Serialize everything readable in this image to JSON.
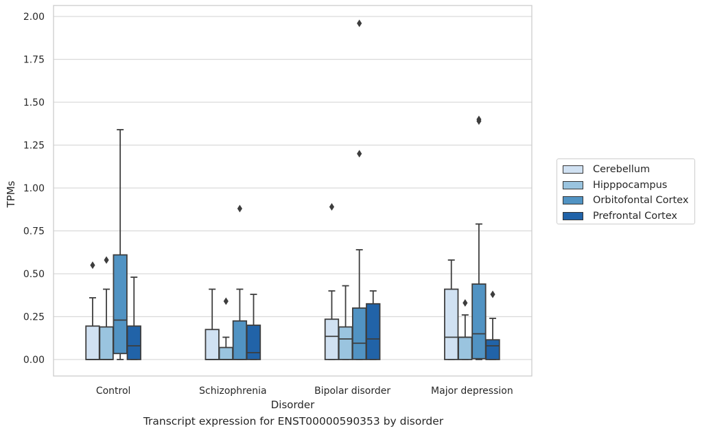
{
  "caption": "Transcript expression for ENST00000590353 by disorder",
  "chart_data": {
    "type": "box",
    "xlabel": "Disorder",
    "ylabel": "TPMs",
    "ylim": [
      -0.095,
      2.06
    ],
    "yticks": [
      "0.00",
      "0.25",
      "0.50",
      "0.75",
      "1.00",
      "1.25",
      "1.50",
      "1.75",
      "2.00"
    ],
    "grid": true,
    "legend_position": "center-right outside",
    "categories": [
      "Control",
      "Schizophrenia",
      "Bipolar disorder",
      "Major depression"
    ],
    "series": [
      {
        "name": "Cerebellum",
        "color": "#d0e1f2",
        "boxes": [
          {
            "whisker_low": 0.0,
            "q1": 0.0,
            "median": 0.0,
            "q3": 0.195,
            "whisker_high": 0.36,
            "outliers": [
              0.55
            ]
          },
          {
            "whisker_low": 0.0,
            "q1": 0.0,
            "median": 0.0,
            "q3": 0.175,
            "whisker_high": 0.41,
            "outliers": []
          },
          {
            "whisker_low": 0.0,
            "q1": 0.0,
            "median": 0.135,
            "q3": 0.235,
            "whisker_high": 0.4,
            "outliers": [
              0.89
            ]
          },
          {
            "whisker_low": 0.0,
            "q1": 0.0,
            "median": 0.13,
            "q3": 0.41,
            "whisker_high": 0.58,
            "outliers": []
          }
        ]
      },
      {
        "name": "Hipppocampus",
        "color": "#9ac4df",
        "boxes": [
          {
            "whisker_low": 0.0,
            "q1": 0.0,
            "median": 0.0,
            "q3": 0.19,
            "whisker_high": 0.41,
            "outliers": [
              0.58
            ]
          },
          {
            "whisker_low": 0.0,
            "q1": 0.0,
            "median": 0.0,
            "q3": 0.07,
            "whisker_high": 0.13,
            "outliers": [
              0.34
            ]
          },
          {
            "whisker_low": 0.0,
            "q1": 0.0,
            "median": 0.12,
            "q3": 0.19,
            "whisker_high": 0.43,
            "outliers": []
          },
          {
            "whisker_low": 0.0,
            "q1": 0.0,
            "median": 0.13,
            "q3": 0.13,
            "whisker_high": 0.26,
            "outliers": [
              0.33
            ]
          }
        ]
      },
      {
        "name": "Orbitofontal Cortex",
        "color": "#5193c3",
        "boxes": [
          {
            "whisker_low": 0.0,
            "q1": 0.035,
            "median": 0.23,
            "q3": 0.61,
            "whisker_high": 1.34,
            "outliers": []
          },
          {
            "whisker_low": 0.0,
            "q1": 0.0,
            "median": 0.0,
            "q3": 0.225,
            "whisker_high": 0.41,
            "outliers": [
              0.88
            ]
          },
          {
            "whisker_low": 0.0,
            "q1": 0.0,
            "median": 0.095,
            "q3": 0.3,
            "whisker_high": 0.64,
            "outliers": [
              1.2,
              1.96
            ]
          },
          {
            "whisker_low": 0.0,
            "q1": 0.005,
            "median": 0.15,
            "q3": 0.44,
            "whisker_high": 0.79,
            "outliers": [
              1.39,
              1.4
            ]
          }
        ]
      },
      {
        "name": "Prefrontal Cortex",
        "color": "#2163a8",
        "boxes": [
          {
            "whisker_low": 0.0,
            "q1": 0.0,
            "median": 0.08,
            "q3": 0.195,
            "whisker_high": 0.48,
            "outliers": []
          },
          {
            "whisker_low": 0.0,
            "q1": 0.0,
            "median": 0.04,
            "q3": 0.2,
            "whisker_high": 0.38,
            "outliers": []
          },
          {
            "whisker_low": 0.0,
            "q1": 0.0,
            "median": 0.12,
            "q3": 0.325,
            "whisker_high": 0.4,
            "outliers": []
          },
          {
            "whisker_low": 0.0,
            "q1": 0.0,
            "median": 0.08,
            "q3": 0.115,
            "whisker_high": 0.24,
            "outliers": [
              0.38
            ]
          }
        ]
      }
    ]
  }
}
